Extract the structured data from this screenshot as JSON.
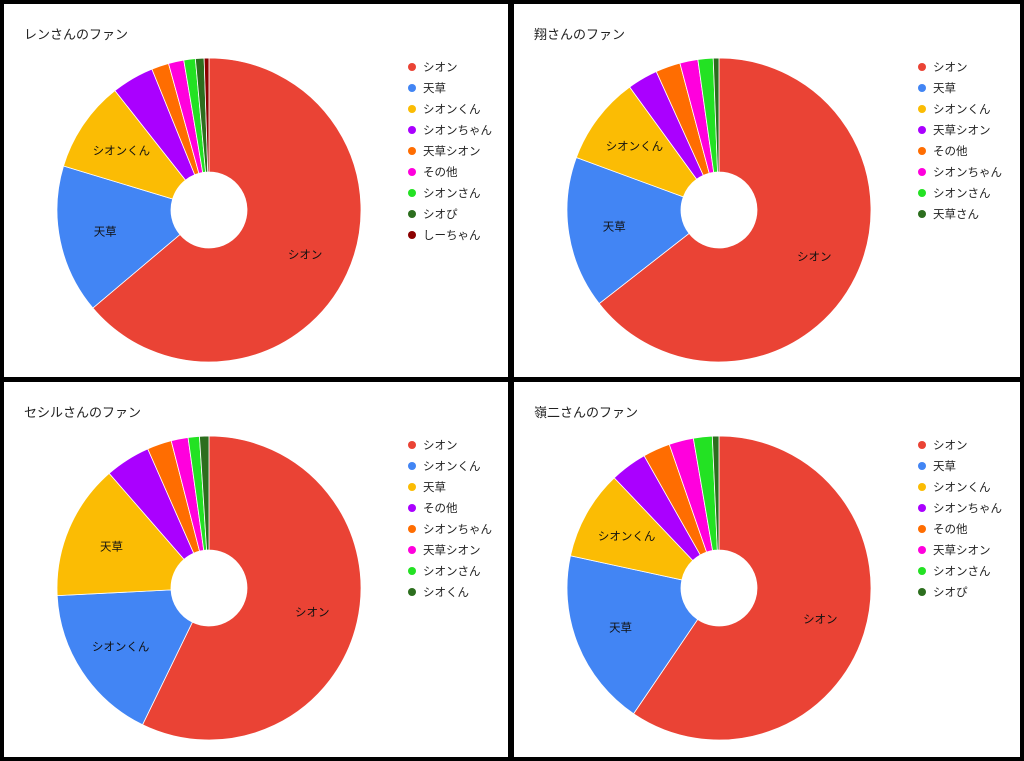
{
  "chart_data": [
    {
      "type": "pie",
      "title": "レンさんのファン",
      "categories": [
        "シオン",
        "天草",
        "シオンくん",
        "シオンちゃん",
        "天草シオン",
        "その他",
        "シオンさん",
        "シオぴ",
        "しーちゃん"
      ],
      "values": [
        62.5,
        15.5,
        9.5,
        4.4,
        1.8,
        1.6,
        1.2,
        0.9,
        0.5
      ],
      "colors": [
        "#ea4335",
        "#4285f4",
        "#fbbc04",
        "#aa00ff",
        "#ff6d01",
        "#ff00dd",
        "#23e223",
        "#2c6e1e",
        "#8b0000"
      ],
      "slice_labels": [
        "シオン",
        "天草",
        "シオンくん",
        "",
        "",
        "",
        "",
        "",
        ""
      ],
      "legend_position": "right"
    },
    {
      "type": "pie",
      "title": "翔さんのファン",
      "categories": [
        "シオン",
        "天草",
        "シオンくん",
        "天草シオン",
        "その他",
        "シオンちゃん",
        "シオンさん",
        "天草さん"
      ],
      "values": [
        63.8,
        16.0,
        9.3,
        3.2,
        2.6,
        1.9,
        1.6,
        0.6
      ],
      "colors": [
        "#ea4335",
        "#4285f4",
        "#fbbc04",
        "#aa00ff",
        "#ff6d01",
        "#ff00dd",
        "#23e223",
        "#2c6e1e"
      ],
      "slice_labels": [
        "シオン",
        "天草",
        "シオンくん",
        "",
        "",
        "",
        "",
        ""
      ],
      "legend_position": "right"
    },
    {
      "type": "pie",
      "title": "セシルさんのファン",
      "categories": [
        "シオン",
        "シオンくん",
        "天草",
        "その他",
        "シオンちゃん",
        "天草シオン",
        "シオンさん",
        "シオくん"
      ],
      "values": [
        57.2,
        17.0,
        14.4,
        4.8,
        2.6,
        1.8,
        1.2,
        1.0
      ],
      "colors": [
        "#ea4335",
        "#4285f4",
        "#fbbc04",
        "#aa00ff",
        "#ff6d01",
        "#ff00dd",
        "#23e223",
        "#2c6e1e"
      ],
      "slice_labels": [
        "シオン",
        "シオンくん",
        "天草",
        "",
        "",
        "",
        "",
        ""
      ],
      "legend_position": "right"
    },
    {
      "type": "pie",
      "title": "嶺二さんのファン",
      "categories": [
        "シオン",
        "天草",
        "シオンくん",
        "シオンちゃん",
        "その他",
        "天草シオン",
        "シオンさん",
        "シオぴ"
      ],
      "values": [
        59.5,
        18.9,
        9.5,
        3.9,
        2.9,
        2.6,
        2.0,
        0.7
      ],
      "colors": [
        "#ea4335",
        "#4285f4",
        "#fbbc04",
        "#aa00ff",
        "#ff6d01",
        "#ff00dd",
        "#23e223",
        "#2c6e1e"
      ],
      "slice_labels": [
        "シオン",
        "天草",
        "シオンくん",
        "",
        "",
        "",
        "",
        ""
      ],
      "legend_position": "right"
    }
  ]
}
